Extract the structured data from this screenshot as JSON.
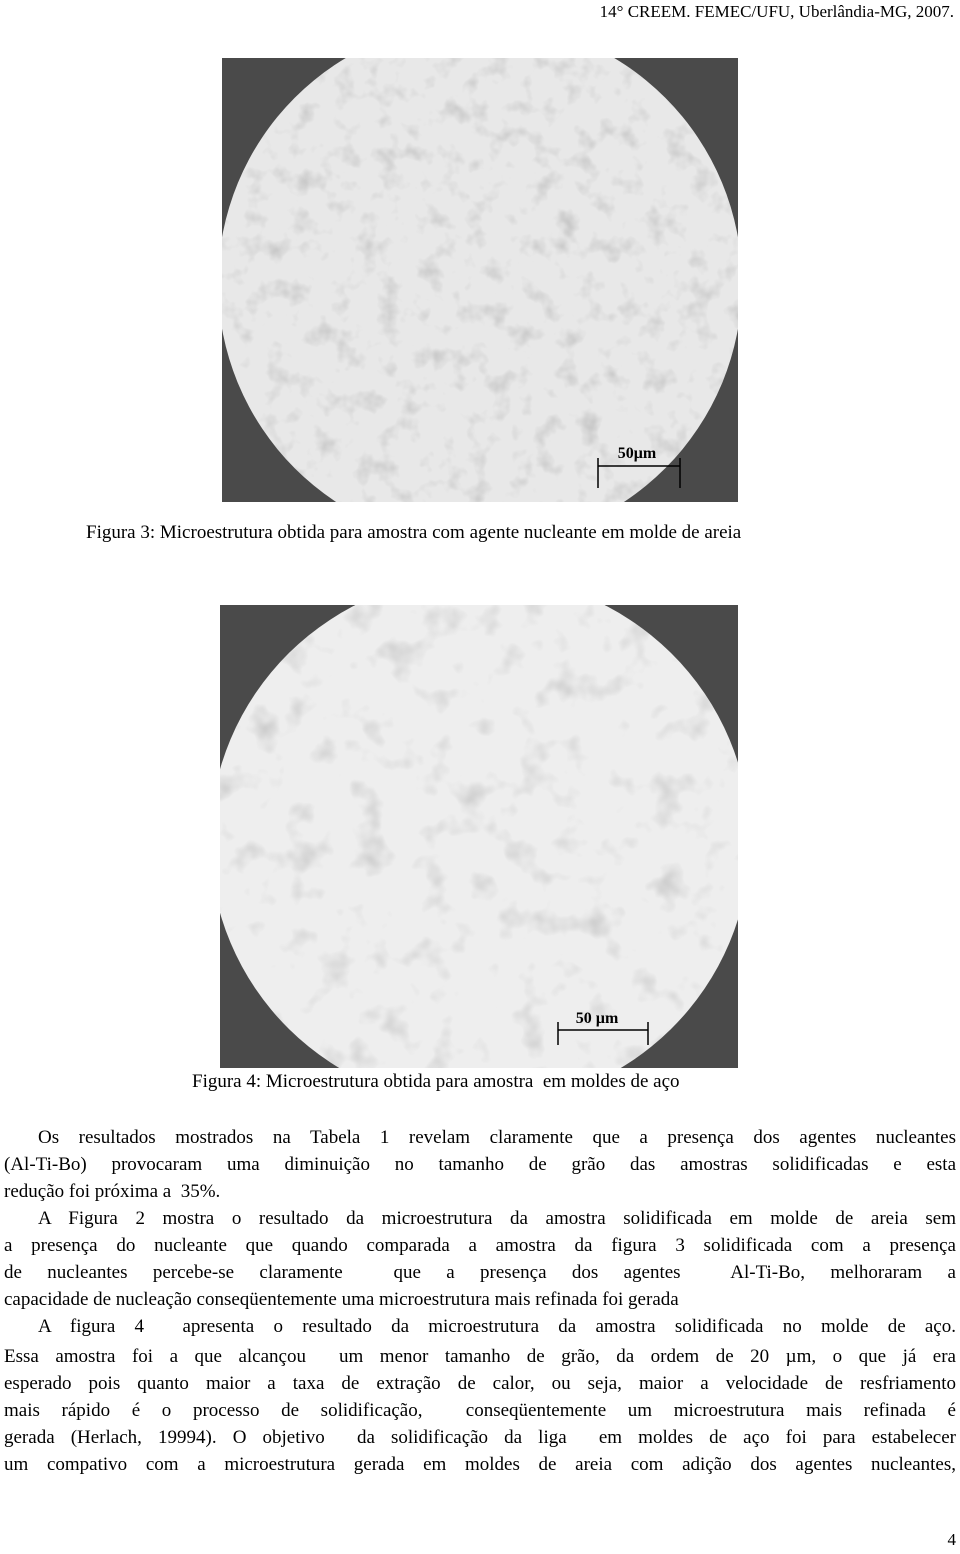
{
  "header": {
    "text": "14° CREEM. FEMEC/UFU, Uberlândia-MG, 2007."
  },
  "figures": [
    {
      "scale_label": "50μm",
      "caption": "Figura 3: Microestrutura obtida para amostra com agente nucleante em molde de areia"
    },
    {
      "scale_label": "50 µm",
      "caption": "Figura 4: Microestrutura obtida para amostra  em moldes de aço"
    }
  ],
  "paragraphs": [
    {
      "lines": [
        "Os resultados mostrados na Tabela 1 revelam claramente que a presença dos agentes nucleantes",
        "(Al-Ti-Bo) provocaram uma diminuição no tamanho de grão das amostras solidificadas e esta",
        "redução foi próxima a  35%."
      ]
    },
    {
      "lines": [
        "A Figura 2 mostra o resultado da microestrutura da amostra solidificada em molde de areia sem",
        "a presença do nucleante que quando comparada a amostra da figura 3 solidificada com a presença",
        "de nucleantes percebe-se claramente  que a presença dos agentes  Al-Ti-Bo, melhoraram a",
        "capacidade de nucleação conseqüentemente uma microestrutura mais refinada foi gerada"
      ]
    },
    {
      "lines": [
        "A figura 4  apresenta o resultado da microestrutura da amostra solidificada no molde de aço.",
        "Essa amostra foi a que alcançou  um menor tamanho de grão, da ordem de 20 µm, o que já era",
        "esperado pois quanto maior a taxa de extração de calor, ou seja, maior a velocidade de resfriamento",
        "mais rápido é o processo de solidificação,  conseqüentemente um microestrutura mais refinada é",
        "gerada (Herlach, 19994). O objetivo  da solidificação da liga  em moldes de aço foi para estabelecer",
        "um compativo com a microestrutura gerada em moldes de areia com adição dos agentes nucleantes,"
      ]
    }
  ],
  "page_number": "4"
}
